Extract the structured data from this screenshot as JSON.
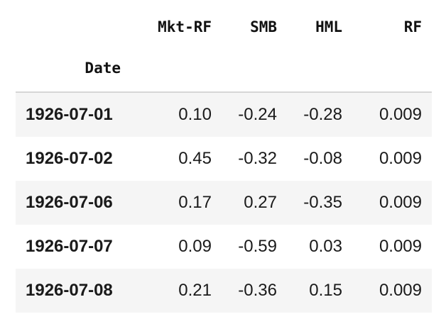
{
  "table": {
    "columns": [
      "Mkt-RF",
      "SMB",
      "HML",
      "RF"
    ],
    "index_name": "Date",
    "rows": [
      {
        "date": "1926-07-01",
        "values": [
          "0.10",
          "-0.24",
          "-0.28",
          "0.009"
        ]
      },
      {
        "date": "1926-07-02",
        "values": [
          "0.45",
          "-0.32",
          "-0.08",
          "0.009"
        ]
      },
      {
        "date": "1926-07-06",
        "values": [
          "0.17",
          "0.27",
          "-0.35",
          "0.009"
        ]
      },
      {
        "date": "1926-07-07",
        "values": [
          "0.09",
          "-0.59",
          "0.03",
          "0.009"
        ]
      },
      {
        "date": "1926-07-08",
        "values": [
          "0.21",
          "-0.36",
          "0.15",
          "0.009"
        ]
      }
    ]
  },
  "colors": {
    "stripe": "#f5f5f5",
    "header_rule": "#d6d6d6",
    "text": "#1a1a1a"
  }
}
